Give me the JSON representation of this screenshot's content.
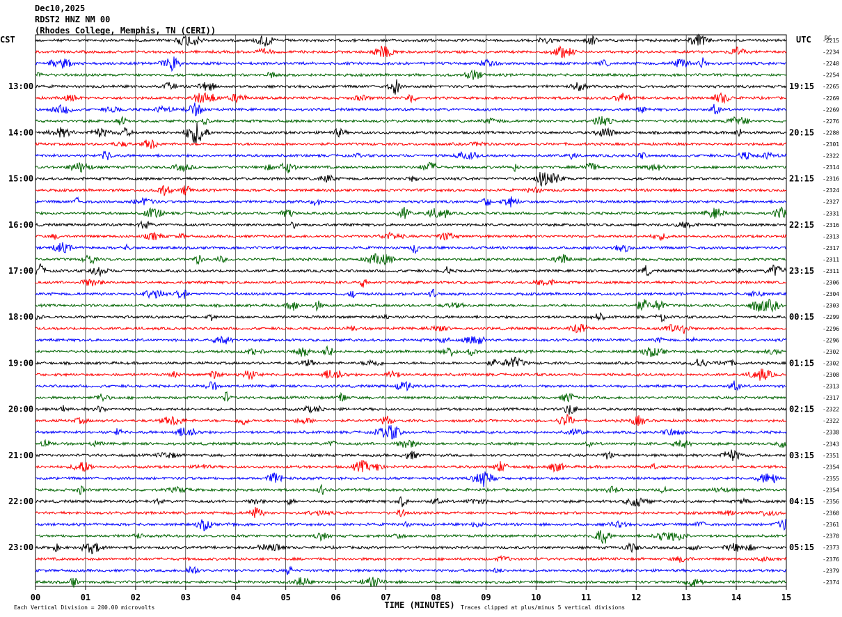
{
  "header": {
    "date": "Dec10,2025",
    "station": "RDST2 HNZ NM 00",
    "location": "(Rhodes College, Memphis, TN (CERI))"
  },
  "chart_data": {
    "type": "line",
    "title": "",
    "xlabel": "TIME (MINUTES)",
    "x_ticks": [
      "00",
      "01",
      "02",
      "03",
      "04",
      "05",
      "06",
      "07",
      "08",
      "09",
      "10",
      "11",
      "12",
      "13",
      "14",
      "15"
    ],
    "xlim": [
      0,
      15
    ],
    "grid": true,
    "left_axis_label": "CST",
    "right_axis_label": "UTC",
    "dc_label": "DC",
    "left_hour_labels": [
      "13:00",
      "14:00",
      "15:00",
      "16:00",
      "17:00",
      "18:00",
      "19:00",
      "20:00",
      "21:00",
      "22:00",
      "23:00"
    ],
    "right_hour_labels": [
      "19:15",
      "20:15",
      "21:15",
      "22:15",
      "23:15",
      "00:15",
      "01:15",
      "02:15",
      "03:15",
      "04:15",
      "05:15"
    ],
    "dc_values": [
      -2215,
      -2234,
      -2240,
      -2254,
      -2265,
      -2269,
      -2269,
      -2276,
      -2280,
      -2301,
      -2322,
      -2314,
      -2316,
      -2324,
      -2327,
      -2331,
      -2316,
      -2313,
      -2317,
      -2311,
      -2311,
      -2306,
      -2304,
      -2303,
      -2299,
      -2296,
      -2296,
      -2302,
      -2302,
      -2308,
      -2313,
      -2317,
      -2322,
      -2322,
      -2338,
      -2343,
      -2351,
      -2354,
      -2355,
      -2354,
      -2356,
      -2360,
      -2361,
      -2370,
      -2373,
      -2376,
      -2379,
      -2374
    ],
    "trace_colors": [
      "#000000",
      "#ff0000",
      "#0000ff",
      "#006400"
    ],
    "scale_note": "Each Vertical Division =  200.00 microvolts",
    "clip_note": "Traces clipped at plus/minus 5 vertical divisions"
  }
}
